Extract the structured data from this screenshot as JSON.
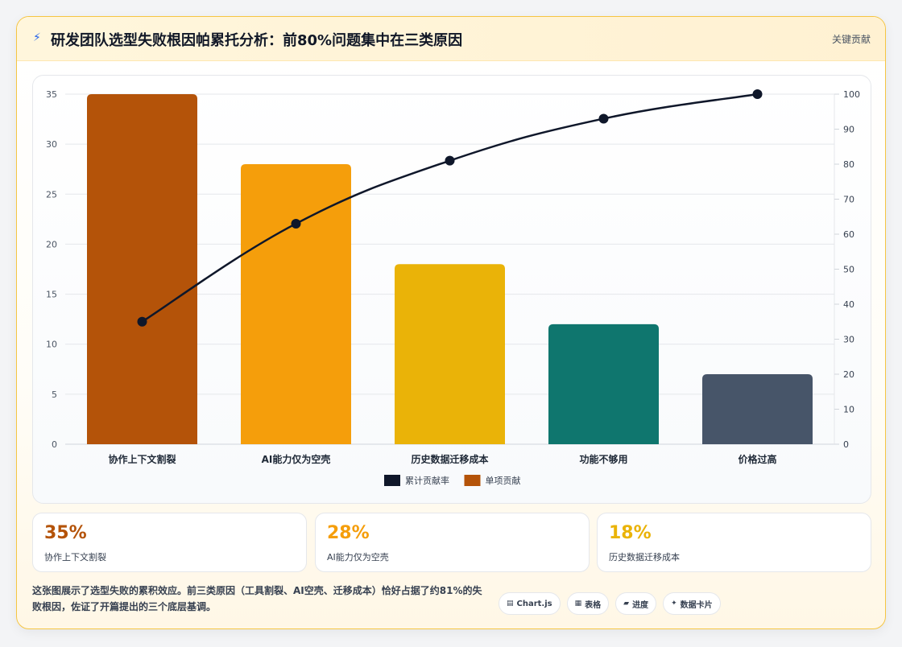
{
  "header": {
    "title": "研发团队选型失败根因帕累托分析：前80%问题集中在三类原因",
    "tag": "关键贡献"
  },
  "chart_data": {
    "type": "bar",
    "categories": [
      "协作上下文割裂",
      "AI能力仅为空壳",
      "历史数据迁移成本",
      "功能不够用",
      "价格过高"
    ],
    "series": [
      {
        "name": "单项贡献",
        "type": "bar",
        "axis": "left",
        "values": [
          35,
          28,
          18,
          12,
          7
        ],
        "colors": [
          "#b45309",
          "#f59e0b",
          "#eab308",
          "#0f766e",
          "#475569"
        ]
      },
      {
        "name": "累计贡献率",
        "type": "line",
        "axis": "right",
        "values": [
          35,
          63,
          81,
          93,
          100
        ],
        "color": "#0f172a"
      }
    ],
    "ylim_left": [
      0,
      35
    ],
    "ylim_right": [
      0,
      100
    ],
    "yticks_left": [
      0,
      5,
      10,
      15,
      20,
      25,
      30,
      35
    ],
    "yticks_right": [
      0,
      10,
      20,
      30,
      40,
      50,
      60,
      70,
      80,
      90,
      100
    ],
    "legend": [
      {
        "label": "累计贡献率",
        "color": "#0f172a"
      },
      {
        "label": "单项贡献",
        "color": "#b45309"
      }
    ],
    "legend_position": "bottom",
    "grid": true
  },
  "stats": [
    {
      "value": "35%",
      "label": "协作上下文割裂",
      "color": "#b45309"
    },
    {
      "value": "28%",
      "label": "AI能力仅为空壳",
      "color": "#f59e0b"
    },
    {
      "value": "18%",
      "label": "历史数据迁移成本",
      "color": "#eab308"
    }
  ],
  "footer": {
    "text": "这张图展示了选型失败的累积效应。前三类原因（工具割裂、AI空壳、迁移成本）恰好占据了约81%的失败根因，佐证了开篇提出的三个底层基调。"
  },
  "chips": [
    {
      "icon": "▤",
      "label": "Chart.js",
      "icon_name": "chart-icon"
    },
    {
      "icon": "▦",
      "label": "表格",
      "icon_name": "table-icon"
    },
    {
      "icon": "▰",
      "label": "进度",
      "icon_name": "progress-icon"
    },
    {
      "icon": "✦",
      "label": "数据卡片",
      "icon_name": "sparkle-icon"
    }
  ]
}
